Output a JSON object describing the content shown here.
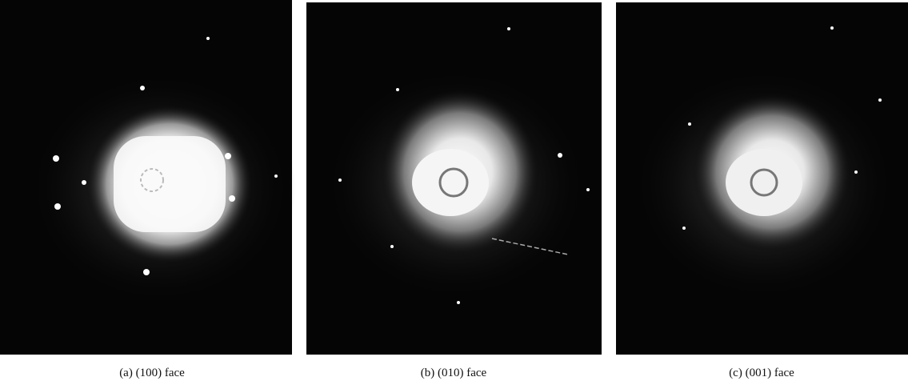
{
  "figure": {
    "panels": [
      {
        "caption": "(a) (100) face"
      },
      {
        "caption": "(b) (010) face"
      },
      {
        "caption": "(c) (001) face"
      }
    ]
  }
}
